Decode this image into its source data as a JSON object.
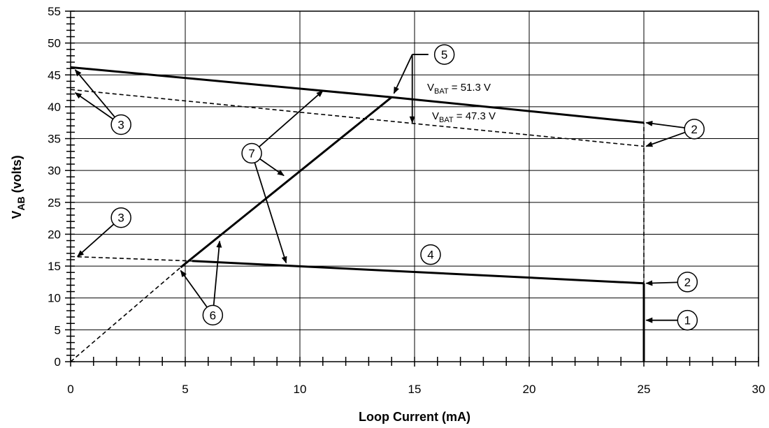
{
  "chart_data": {
    "type": "line",
    "xlabel": "Loop Current (mA)",
    "ylabel_main": "V",
    "ylabel_sub": "AB",
    "ylabel_rest": " (volts)",
    "xlim": [
      0,
      30
    ],
    "ylim": [
      0,
      55
    ],
    "x_ticks": [
      0,
      5,
      10,
      15,
      20,
      25,
      30
    ],
    "y_ticks": [
      0,
      5,
      10,
      15,
      20,
      25,
      30,
      35,
      40,
      45,
      50,
      55
    ],
    "x_minor_step": 1,
    "y_minor_step": 1,
    "grid": true,
    "series": [
      {
        "style": "solid",
        "points": [
          [
            0,
            46.2
          ],
          [
            14,
            41.5
          ],
          [
            25,
            37.5
          ]
        ]
      },
      {
        "style": "dashed",
        "points": [
          [
            0,
            42.7
          ],
          [
            25,
            33.8
          ]
        ]
      },
      {
        "style": "dashed",
        "points": [
          [
            0,
            16.5
          ],
          [
            5.3,
            15.8
          ]
        ]
      },
      {
        "style": "solid",
        "points": [
          [
            5.3,
            15.8
          ],
          [
            25,
            12.3
          ]
        ]
      },
      {
        "style": "solid",
        "points": [
          [
            4.8,
            14.8
          ],
          [
            14,
            41.5
          ]
        ]
      },
      {
        "style": "dashed",
        "points": [
          [
            0,
            0
          ],
          [
            4.8,
            14.8
          ]
        ]
      },
      {
        "style": "dashed",
        "points": [
          [
            25,
            0
          ],
          [
            25,
            37.5
          ]
        ]
      },
      {
        "style": "solid",
        "points": [
          [
            25,
            0
          ],
          [
            25,
            12.3
          ]
        ]
      }
    ],
    "annotations": {
      "vbat_high": {
        "main": "V",
        "sub": "BAT",
        "rest": " = 51.3 V"
      },
      "vbat_low": {
        "main": "V",
        "sub": "BAT",
        "rest": " = 47.3 V"
      }
    },
    "callouts": [
      {
        "label": "1",
        "at": [
          26.9,
          6.5
        ],
        "arrows": [
          [
            25.1,
            6.5
          ]
        ]
      },
      {
        "label": "2",
        "at": [
          26.9,
          12.5
        ],
        "arrows": [
          [
            25.1,
            12.3
          ]
        ]
      },
      {
        "label": "2",
        "at": [
          27.2,
          36.5
        ],
        "arrows": [
          [
            25.1,
            37.5
          ],
          [
            25.1,
            33.8
          ]
        ]
      },
      {
        "label": "3",
        "at": [
          2.2,
          37.2
        ],
        "arrows": [
          [
            0.2,
            45.8
          ],
          [
            0.2,
            42.2
          ]
        ]
      },
      {
        "label": "3",
        "at": [
          2.2,
          22.6
        ],
        "arrows": [
          [
            0.3,
            16.5
          ]
        ]
      },
      {
        "label": "4",
        "at": [
          15.7,
          16.8
        ],
        "arrows": []
      },
      {
        "label": "5",
        "at": [
          16.3,
          48.2
        ],
        "arrows": [
          [
            14.1,
            42.1
          ],
          [
            14.9,
            37.5
          ]
        ],
        "elbow": [
          [
            14.9,
            48.2
          ],
          [
            15.6,
            48.2
          ]
        ]
      },
      {
        "label": "6",
        "at": [
          6.2,
          7.3
        ],
        "arrows": [
          [
            4.8,
            14.3
          ],
          [
            6.5,
            18.9
          ]
        ]
      },
      {
        "label": "7",
        "at": [
          7.9,
          32.7
        ],
        "arrows": [
          [
            11,
            42.5
          ],
          [
            9.3,
            29.2
          ],
          [
            9.4,
            15.5
          ]
        ]
      }
    ]
  }
}
